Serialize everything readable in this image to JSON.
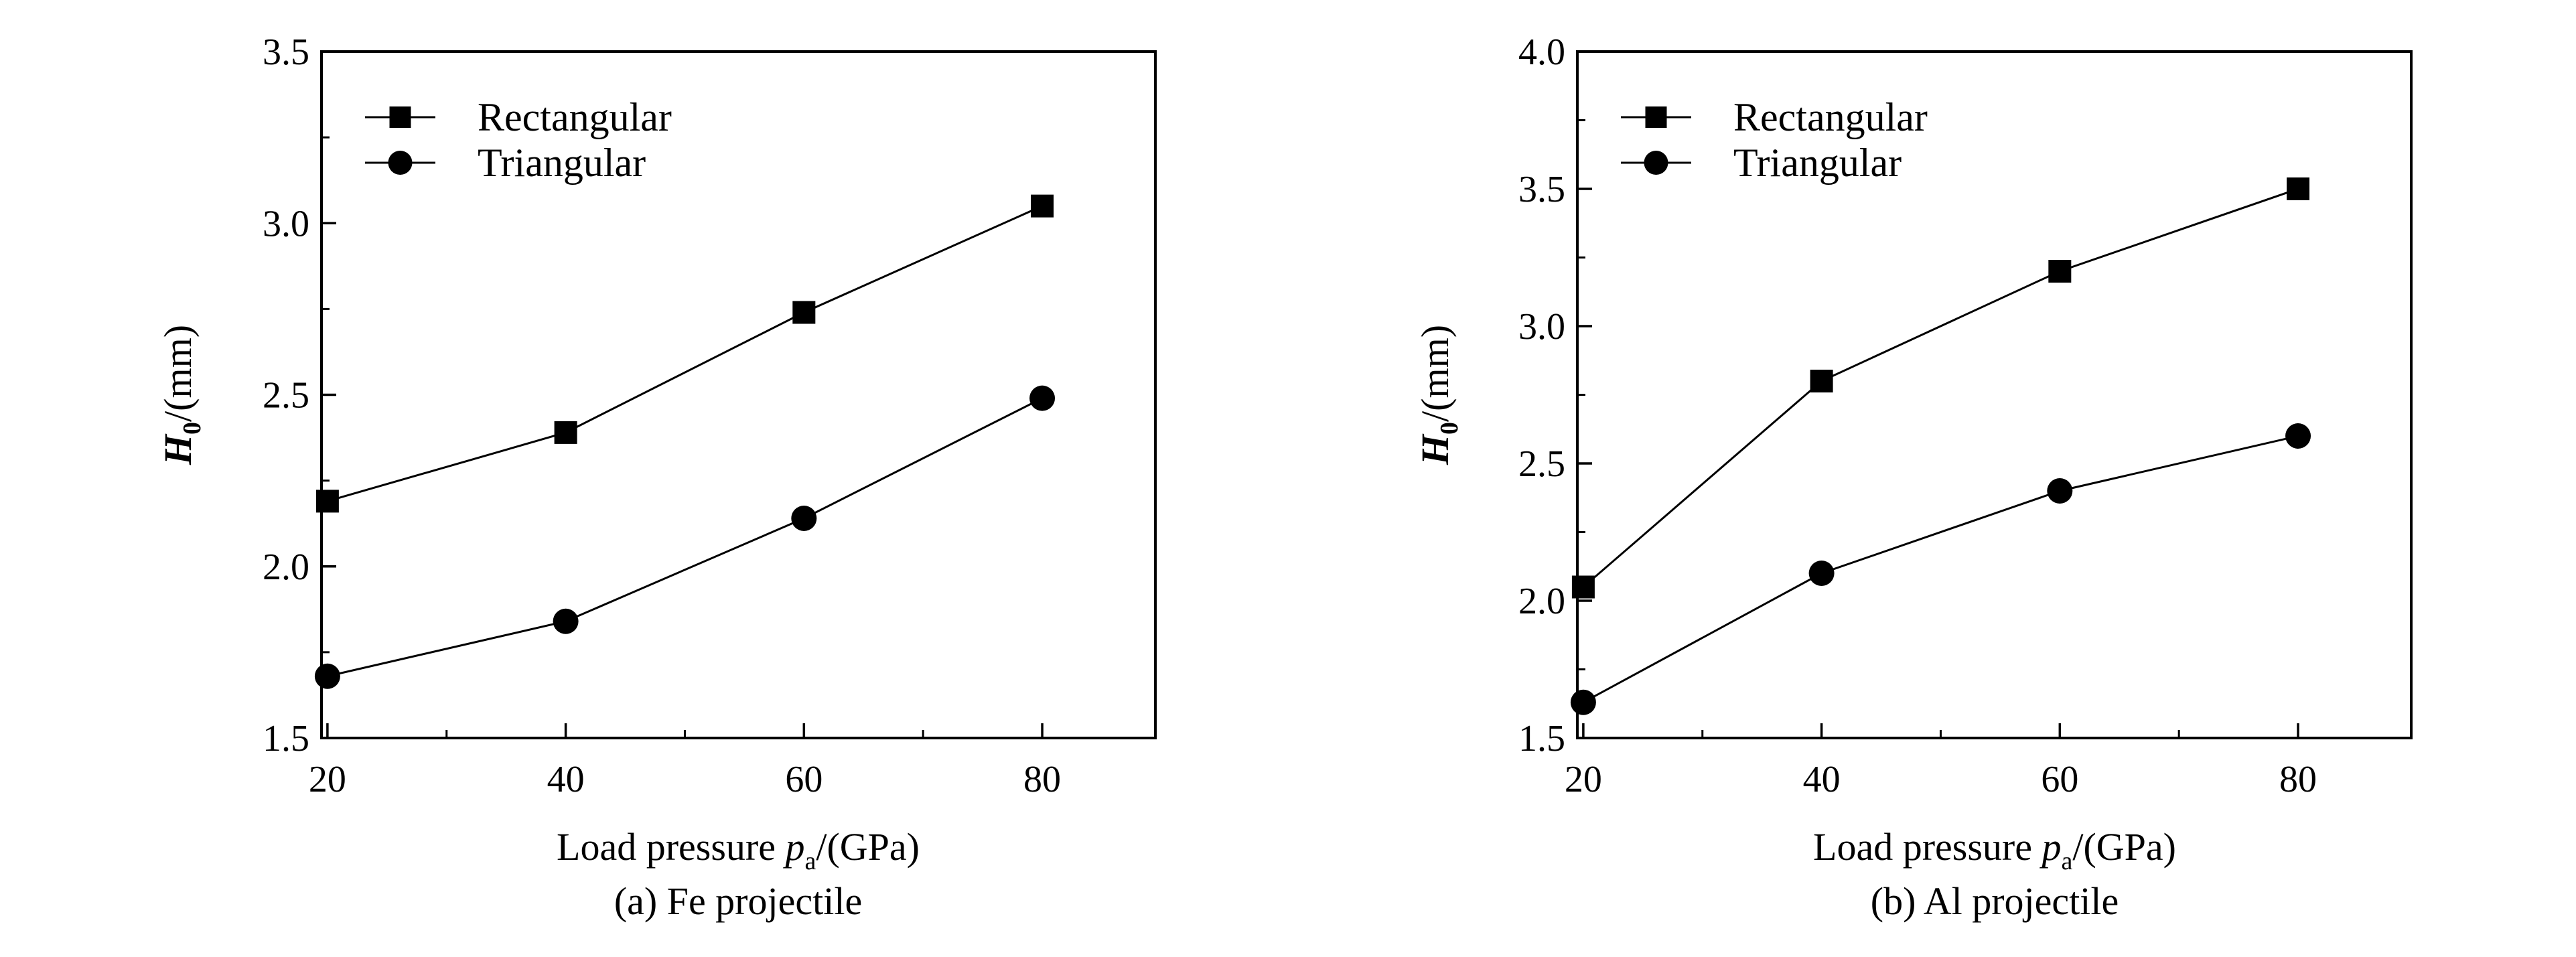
{
  "chart_data": [
    {
      "type": "line",
      "caption": "(a) Fe projectile",
      "xlabel": {
        "main": "Load pressure ",
        "var": "p",
        "sub": "a",
        "unit": "/(GPa)"
      },
      "ylabel": {
        "var": "H",
        "sub": "0",
        "unit": "/(mm)"
      },
      "xlim": [
        19.5,
        89.5
      ],
      "ylim": [
        1.5,
        3.5
      ],
      "xticks": [
        20,
        40,
        60,
        80
      ],
      "xtick_labels": [
        "20",
        "40",
        "60",
        "80"
      ],
      "yticks": [
        1.5,
        2.0,
        2.5,
        3.0,
        3.5
      ],
      "ytick_labels": [
        "1.5",
        "2.0",
        "2.5",
        "3.0",
        "3.5"
      ],
      "grid": false,
      "legend": "top-left",
      "series": [
        {
          "name": "Rectangular",
          "marker": "square",
          "x": [
            20,
            40,
            60,
            80
          ],
          "y": [
            2.19,
            2.39,
            2.74,
            3.05
          ]
        },
        {
          "name": "Triangular",
          "marker": "circle",
          "x": [
            20,
            40,
            60,
            80
          ],
          "y": [
            1.68,
            1.84,
            2.14,
            2.49
          ]
        }
      ]
    },
    {
      "type": "line",
      "caption": "(b) Al projectile",
      "xlabel": {
        "main": "Load pressure ",
        "var": "p",
        "sub": "a",
        "unit": "/(GPa)"
      },
      "ylabel": {
        "var": "H",
        "sub": "0",
        "unit": "/(mm)"
      },
      "xlim": [
        19.5,
        89.5
      ],
      "ylim": [
        1.5,
        4.0
      ],
      "xticks": [
        20,
        40,
        60,
        80
      ],
      "xtick_labels": [
        "20",
        "40",
        "60",
        "80"
      ],
      "yticks": [
        1.5,
        2.0,
        2.5,
        3.0,
        3.5,
        4.0
      ],
      "ytick_labels": [
        "1.5",
        "2.0",
        "2.5",
        "3.0",
        "3.5",
        "4.0"
      ],
      "grid": false,
      "legend": "top-left",
      "series": [
        {
          "name": "Rectangular",
          "marker": "square",
          "x": [
            20,
            40,
            60,
            80
          ],
          "y": [
            2.05,
            2.8,
            3.2,
            3.5
          ]
        },
        {
          "name": "Triangular",
          "marker": "circle",
          "x": [
            20,
            40,
            60,
            80
          ],
          "y": [
            1.63,
            2.1,
            2.4,
            2.6
          ]
        }
      ]
    }
  ]
}
